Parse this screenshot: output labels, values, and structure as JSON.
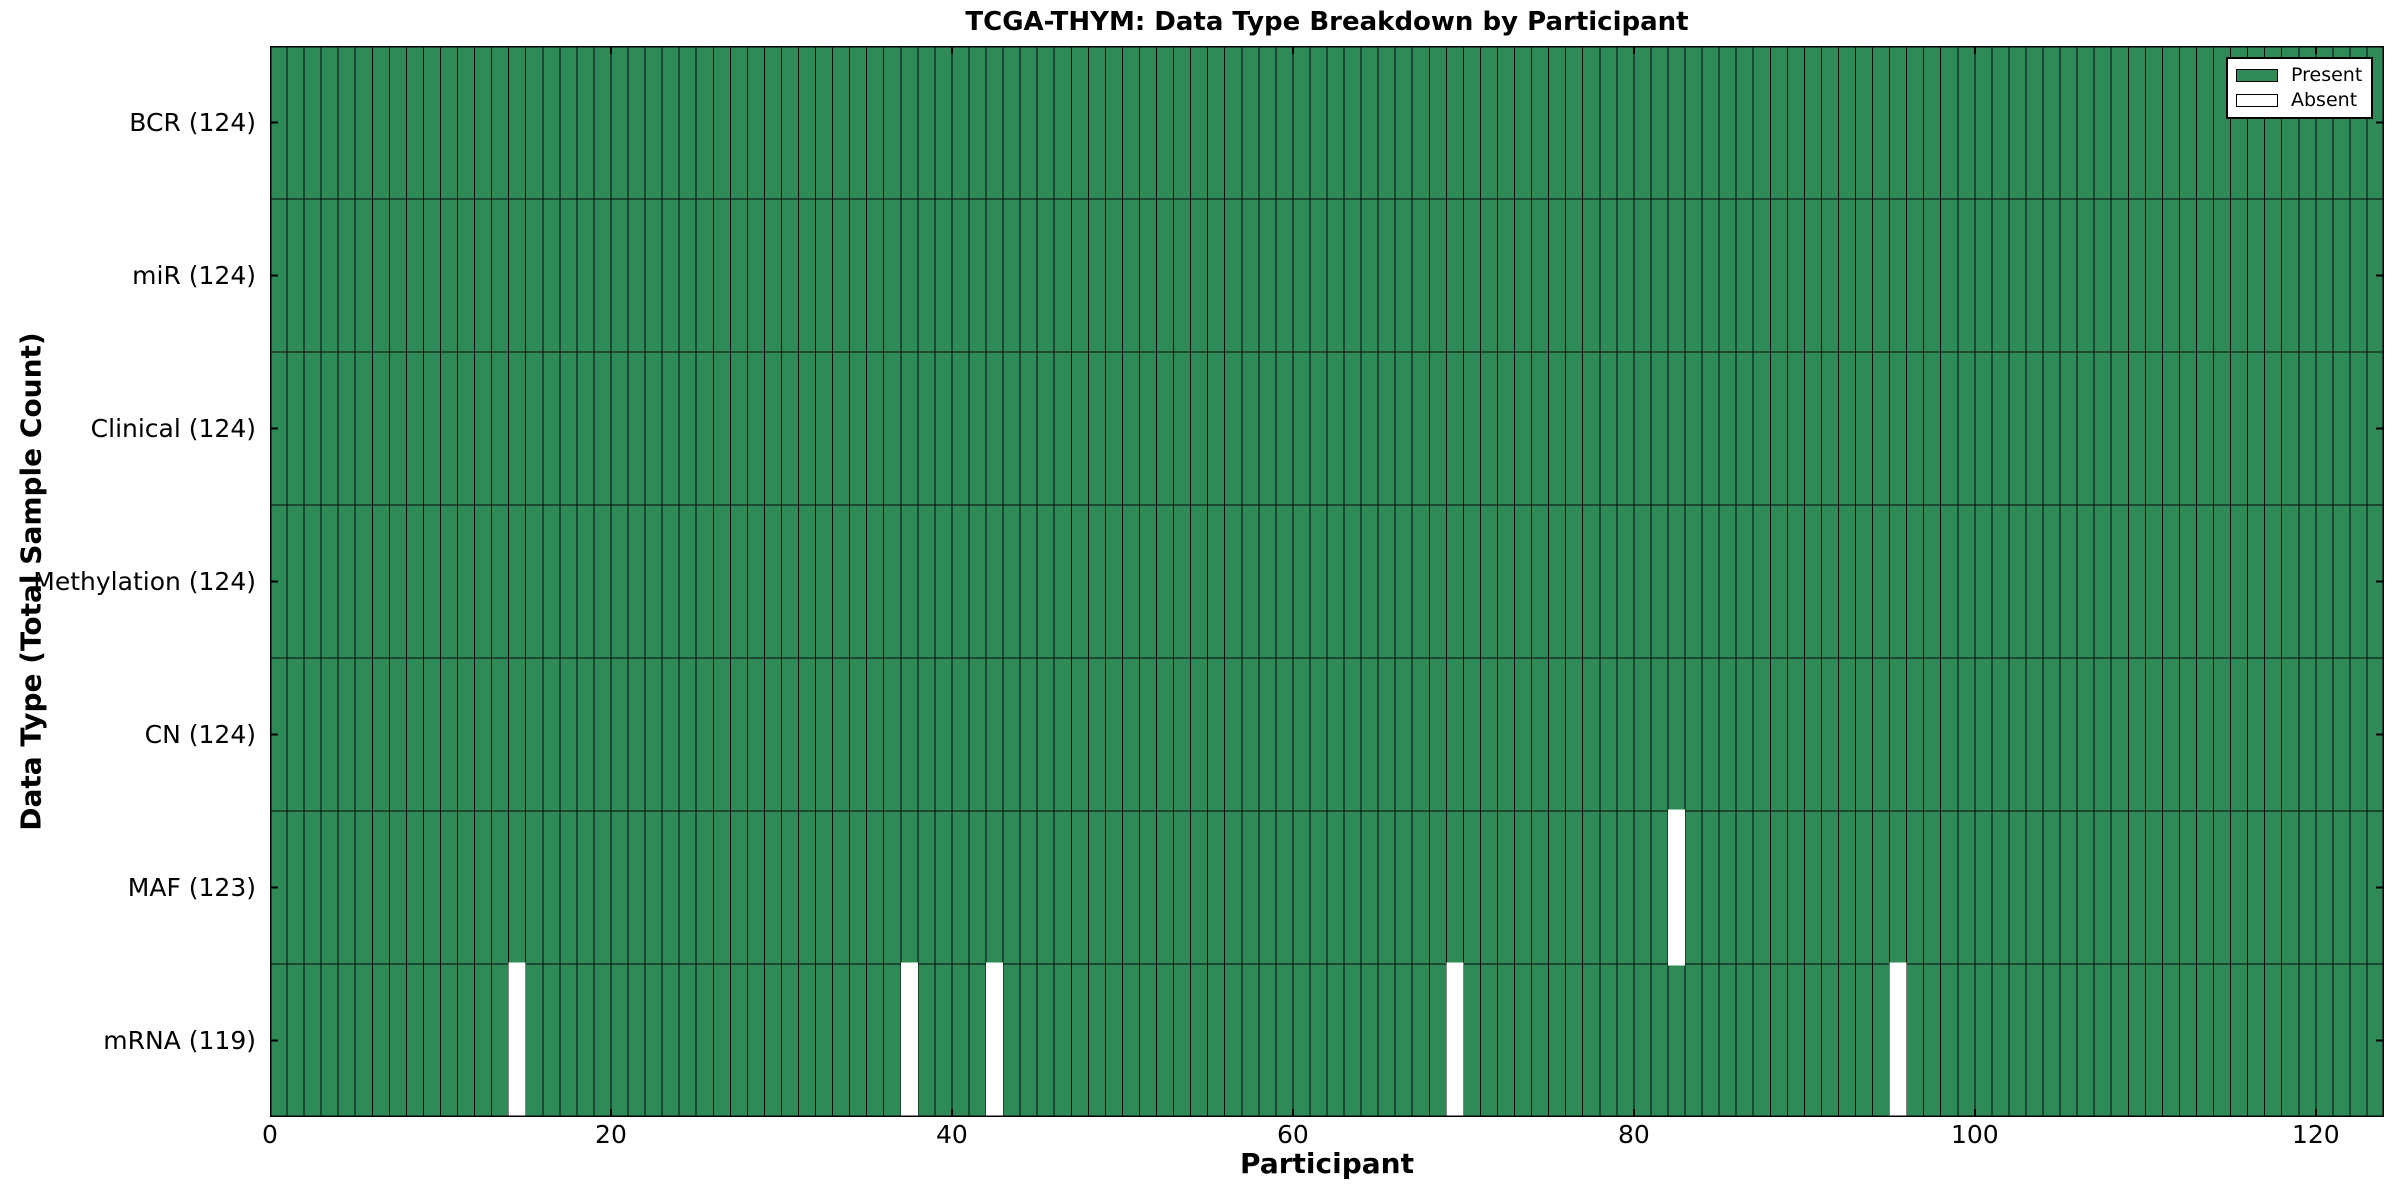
{
  "figure": {
    "background": "#ffffff"
  },
  "chart_data": {
    "type": "heatmap",
    "title": "TCGA-THYM: Data Type Breakdown by Participant",
    "xlabel": "Participant",
    "ylabel": "Data Type (Total Sample Count)",
    "xlim": [
      0,
      124
    ],
    "x_ticks": [
      0,
      20,
      40,
      60,
      80,
      100,
      120
    ],
    "n_participants": 124,
    "rows": [
      {
        "name": "BCR",
        "label": "BCR (124)",
        "total": 124,
        "absent_participants": []
      },
      {
        "name": "miR",
        "label": "miR (124)",
        "total": 124,
        "absent_participants": []
      },
      {
        "name": "Clinical",
        "label": "Clinical (124)",
        "total": 124,
        "absent_participants": []
      },
      {
        "name": "Methylation",
        "label": "Methylation (124)",
        "total": 124,
        "absent_participants": []
      },
      {
        "name": "CN",
        "label": "CN (124)",
        "total": 124,
        "absent_participants": []
      },
      {
        "name": "MAF",
        "label": "MAF (123)",
        "total": 123,
        "absent_participants": [
          82
        ]
      },
      {
        "name": "mRNA",
        "label": "mRNA (119)",
        "total": 119,
        "absent_participants": [
          14,
          37,
          42,
          69,
          95
        ]
      }
    ],
    "legend": {
      "position": "upper right",
      "entries": [
        {
          "label": "Present",
          "color": "#2e8b57"
        },
        {
          "label": "Absent",
          "color": "#ffffff"
        }
      ]
    },
    "colors": {
      "present_fill": "#2e8b57",
      "absent_fill": "#ffffff",
      "cell_edge": "#0a0a0a",
      "spine": "#000000"
    },
    "grid": false,
    "tick_direction": "in"
  }
}
